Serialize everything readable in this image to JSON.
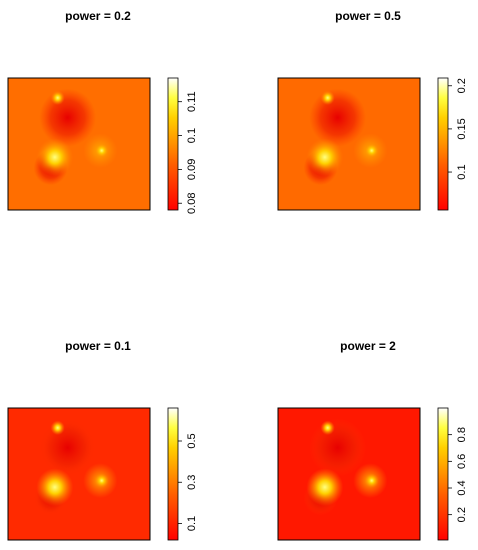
{
  "chart_data": [
    {
      "type": "heatmap",
      "title": "power = 0.2",
      "zlim": [
        0.078,
        0.117
      ],
      "zticks": [
        0.08,
        0.09,
        0.1,
        0.11
      ],
      "background": "#ff6e00"
    },
    {
      "type": "heatmap",
      "title": "power = 0.5",
      "zlim": [
        0.056,
        0.209
      ],
      "zticks": [
        0.1,
        0.15,
        0.2
      ],
      "background": "#ff6a00"
    },
    {
      "type": "heatmap",
      "title": "power = 0.1",
      "zlim": [
        0.02,
        0.66
      ],
      "zticks": [
        0.1,
        0.3,
        0.5
      ],
      "background": "#ff2a00"
    },
    {
      "type": "heatmap",
      "title": "power = 2",
      "zlim": [
        0.01,
        1.0
      ],
      "zticks": [
        0.2,
        0.4,
        0.6,
        0.8
      ],
      "background": "#ff1800"
    }
  ]
}
